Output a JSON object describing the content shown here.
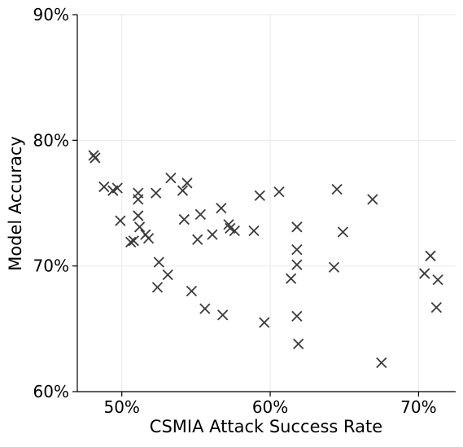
{
  "chart_data": {
    "type": "scatter",
    "title": "",
    "xlabel": "CSMIA Attack Success Rate",
    "ylabel": "Model Accuracy",
    "xlim": [
      0.47,
      0.725
    ],
    "ylim": [
      0.6,
      0.9
    ],
    "x_ticks": [
      {
        "value": 0.5,
        "label": "50%"
      },
      {
        "value": 0.6,
        "label": "60%"
      },
      {
        "value": 0.7,
        "label": "70%"
      }
    ],
    "y_ticks": [
      {
        "value": 0.6,
        "label": "60%"
      },
      {
        "value": 0.7,
        "label": "70%"
      },
      {
        "value": 0.8,
        "label": "80%"
      },
      {
        "value": 0.9,
        "label": "90%"
      }
    ],
    "grid": true,
    "marker": "x",
    "marker_color": "#3b3b3b",
    "grid_color": "#ebebeb",
    "points": [
      [
        0.481,
        0.788
      ],
      [
        0.482,
        0.786
      ],
      [
        0.488,
        0.763
      ],
      [
        0.494,
        0.76
      ],
      [
        0.497,
        0.762
      ],
      [
        0.499,
        0.736
      ],
      [
        0.506,
        0.719
      ],
      [
        0.508,
        0.72
      ],
      [
        0.511,
        0.758
      ],
      [
        0.511,
        0.753
      ],
      [
        0.511,
        0.74
      ],
      [
        0.512,
        0.731
      ],
      [
        0.516,
        0.725
      ],
      [
        0.518,
        0.722
      ],
      [
        0.523,
        0.758
      ],
      [
        0.525,
        0.703
      ],
      [
        0.524,
        0.683
      ],
      [
        0.531,
        0.693
      ],
      [
        0.533,
        0.77
      ],
      [
        0.541,
        0.76
      ],
      [
        0.542,
        0.737
      ],
      [
        0.544,
        0.766
      ],
      [
        0.547,
        0.68
      ],
      [
        0.551,
        0.721
      ],
      [
        0.553,
        0.741
      ],
      [
        0.556,
        0.666
      ],
      [
        0.561,
        0.725
      ],
      [
        0.567,
        0.746
      ],
      [
        0.568,
        0.661
      ],
      [
        0.572,
        0.733
      ],
      [
        0.573,
        0.73
      ],
      [
        0.576,
        0.728
      ],
      [
        0.589,
        0.728
      ],
      [
        0.593,
        0.756
      ],
      [
        0.596,
        0.655
      ],
      [
        0.606,
        0.759
      ],
      [
        0.614,
        0.69
      ],
      [
        0.618,
        0.731
      ],
      [
        0.618,
        0.713
      ],
      [
        0.618,
        0.701
      ],
      [
        0.618,
        0.66
      ],
      [
        0.619,
        0.638
      ],
      [
        0.643,
        0.699
      ],
      [
        0.645,
        0.761
      ],
      [
        0.649,
        0.727
      ],
      [
        0.669,
        0.753
      ],
      [
        0.675,
        0.623
      ],
      [
        0.704,
        0.694
      ],
      [
        0.708,
        0.708
      ],
      [
        0.712,
        0.667
      ],
      [
        0.713,
        0.689
      ]
    ]
  }
}
